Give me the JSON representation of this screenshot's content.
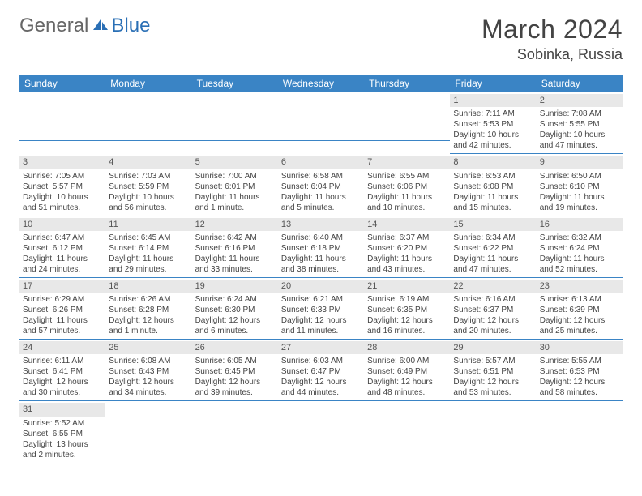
{
  "logo": {
    "part1": "General",
    "part2": "Blue"
  },
  "title": {
    "month": "March 2024",
    "location": "Sobinka, Russia"
  },
  "colors": {
    "header_bg": "#3a84c5",
    "header_fg": "#ffffff",
    "daynum_bg": "#e8e8e8",
    "row_divider": "#3a84c5",
    "logo_blue": "#2a6fb5"
  },
  "weekdays": [
    "Sunday",
    "Monday",
    "Tuesday",
    "Wednesday",
    "Thursday",
    "Friday",
    "Saturday"
  ],
  "weeks": [
    [
      null,
      null,
      null,
      null,
      null,
      {
        "d": "1",
        "sr": "Sunrise: 7:11 AM",
        "ss": "Sunset: 5:53 PM",
        "dl": "Daylight: 10 hours and 42 minutes."
      },
      {
        "d": "2",
        "sr": "Sunrise: 7:08 AM",
        "ss": "Sunset: 5:55 PM",
        "dl": "Daylight: 10 hours and 47 minutes."
      }
    ],
    [
      {
        "d": "3",
        "sr": "Sunrise: 7:05 AM",
        "ss": "Sunset: 5:57 PM",
        "dl": "Daylight: 10 hours and 51 minutes."
      },
      {
        "d": "4",
        "sr": "Sunrise: 7:03 AM",
        "ss": "Sunset: 5:59 PM",
        "dl": "Daylight: 10 hours and 56 minutes."
      },
      {
        "d": "5",
        "sr": "Sunrise: 7:00 AM",
        "ss": "Sunset: 6:01 PM",
        "dl": "Daylight: 11 hours and 1 minute."
      },
      {
        "d": "6",
        "sr": "Sunrise: 6:58 AM",
        "ss": "Sunset: 6:04 PM",
        "dl": "Daylight: 11 hours and 5 minutes."
      },
      {
        "d": "7",
        "sr": "Sunrise: 6:55 AM",
        "ss": "Sunset: 6:06 PM",
        "dl": "Daylight: 11 hours and 10 minutes."
      },
      {
        "d": "8",
        "sr": "Sunrise: 6:53 AM",
        "ss": "Sunset: 6:08 PM",
        "dl": "Daylight: 11 hours and 15 minutes."
      },
      {
        "d": "9",
        "sr": "Sunrise: 6:50 AM",
        "ss": "Sunset: 6:10 PM",
        "dl": "Daylight: 11 hours and 19 minutes."
      }
    ],
    [
      {
        "d": "10",
        "sr": "Sunrise: 6:47 AM",
        "ss": "Sunset: 6:12 PM",
        "dl": "Daylight: 11 hours and 24 minutes."
      },
      {
        "d": "11",
        "sr": "Sunrise: 6:45 AM",
        "ss": "Sunset: 6:14 PM",
        "dl": "Daylight: 11 hours and 29 minutes."
      },
      {
        "d": "12",
        "sr": "Sunrise: 6:42 AM",
        "ss": "Sunset: 6:16 PM",
        "dl": "Daylight: 11 hours and 33 minutes."
      },
      {
        "d": "13",
        "sr": "Sunrise: 6:40 AM",
        "ss": "Sunset: 6:18 PM",
        "dl": "Daylight: 11 hours and 38 minutes."
      },
      {
        "d": "14",
        "sr": "Sunrise: 6:37 AM",
        "ss": "Sunset: 6:20 PM",
        "dl": "Daylight: 11 hours and 43 minutes."
      },
      {
        "d": "15",
        "sr": "Sunrise: 6:34 AM",
        "ss": "Sunset: 6:22 PM",
        "dl": "Daylight: 11 hours and 47 minutes."
      },
      {
        "d": "16",
        "sr": "Sunrise: 6:32 AM",
        "ss": "Sunset: 6:24 PM",
        "dl": "Daylight: 11 hours and 52 minutes."
      }
    ],
    [
      {
        "d": "17",
        "sr": "Sunrise: 6:29 AM",
        "ss": "Sunset: 6:26 PM",
        "dl": "Daylight: 11 hours and 57 minutes."
      },
      {
        "d": "18",
        "sr": "Sunrise: 6:26 AM",
        "ss": "Sunset: 6:28 PM",
        "dl": "Daylight: 12 hours and 1 minute."
      },
      {
        "d": "19",
        "sr": "Sunrise: 6:24 AM",
        "ss": "Sunset: 6:30 PM",
        "dl": "Daylight: 12 hours and 6 minutes."
      },
      {
        "d": "20",
        "sr": "Sunrise: 6:21 AM",
        "ss": "Sunset: 6:33 PM",
        "dl": "Daylight: 12 hours and 11 minutes."
      },
      {
        "d": "21",
        "sr": "Sunrise: 6:19 AM",
        "ss": "Sunset: 6:35 PM",
        "dl": "Daylight: 12 hours and 16 minutes."
      },
      {
        "d": "22",
        "sr": "Sunrise: 6:16 AM",
        "ss": "Sunset: 6:37 PM",
        "dl": "Daylight: 12 hours and 20 minutes."
      },
      {
        "d": "23",
        "sr": "Sunrise: 6:13 AM",
        "ss": "Sunset: 6:39 PM",
        "dl": "Daylight: 12 hours and 25 minutes."
      }
    ],
    [
      {
        "d": "24",
        "sr": "Sunrise: 6:11 AM",
        "ss": "Sunset: 6:41 PM",
        "dl": "Daylight: 12 hours and 30 minutes."
      },
      {
        "d": "25",
        "sr": "Sunrise: 6:08 AM",
        "ss": "Sunset: 6:43 PM",
        "dl": "Daylight: 12 hours and 34 minutes."
      },
      {
        "d": "26",
        "sr": "Sunrise: 6:05 AM",
        "ss": "Sunset: 6:45 PM",
        "dl": "Daylight: 12 hours and 39 minutes."
      },
      {
        "d": "27",
        "sr": "Sunrise: 6:03 AM",
        "ss": "Sunset: 6:47 PM",
        "dl": "Daylight: 12 hours and 44 minutes."
      },
      {
        "d": "28",
        "sr": "Sunrise: 6:00 AM",
        "ss": "Sunset: 6:49 PM",
        "dl": "Daylight: 12 hours and 48 minutes."
      },
      {
        "d": "29",
        "sr": "Sunrise: 5:57 AM",
        "ss": "Sunset: 6:51 PM",
        "dl": "Daylight: 12 hours and 53 minutes."
      },
      {
        "d": "30",
        "sr": "Sunrise: 5:55 AM",
        "ss": "Sunset: 6:53 PM",
        "dl": "Daylight: 12 hours and 58 minutes."
      }
    ],
    [
      {
        "d": "31",
        "sr": "Sunrise: 5:52 AM",
        "ss": "Sunset: 6:55 PM",
        "dl": "Daylight: 13 hours and 2 minutes."
      },
      null,
      null,
      null,
      null,
      null,
      null
    ]
  ]
}
